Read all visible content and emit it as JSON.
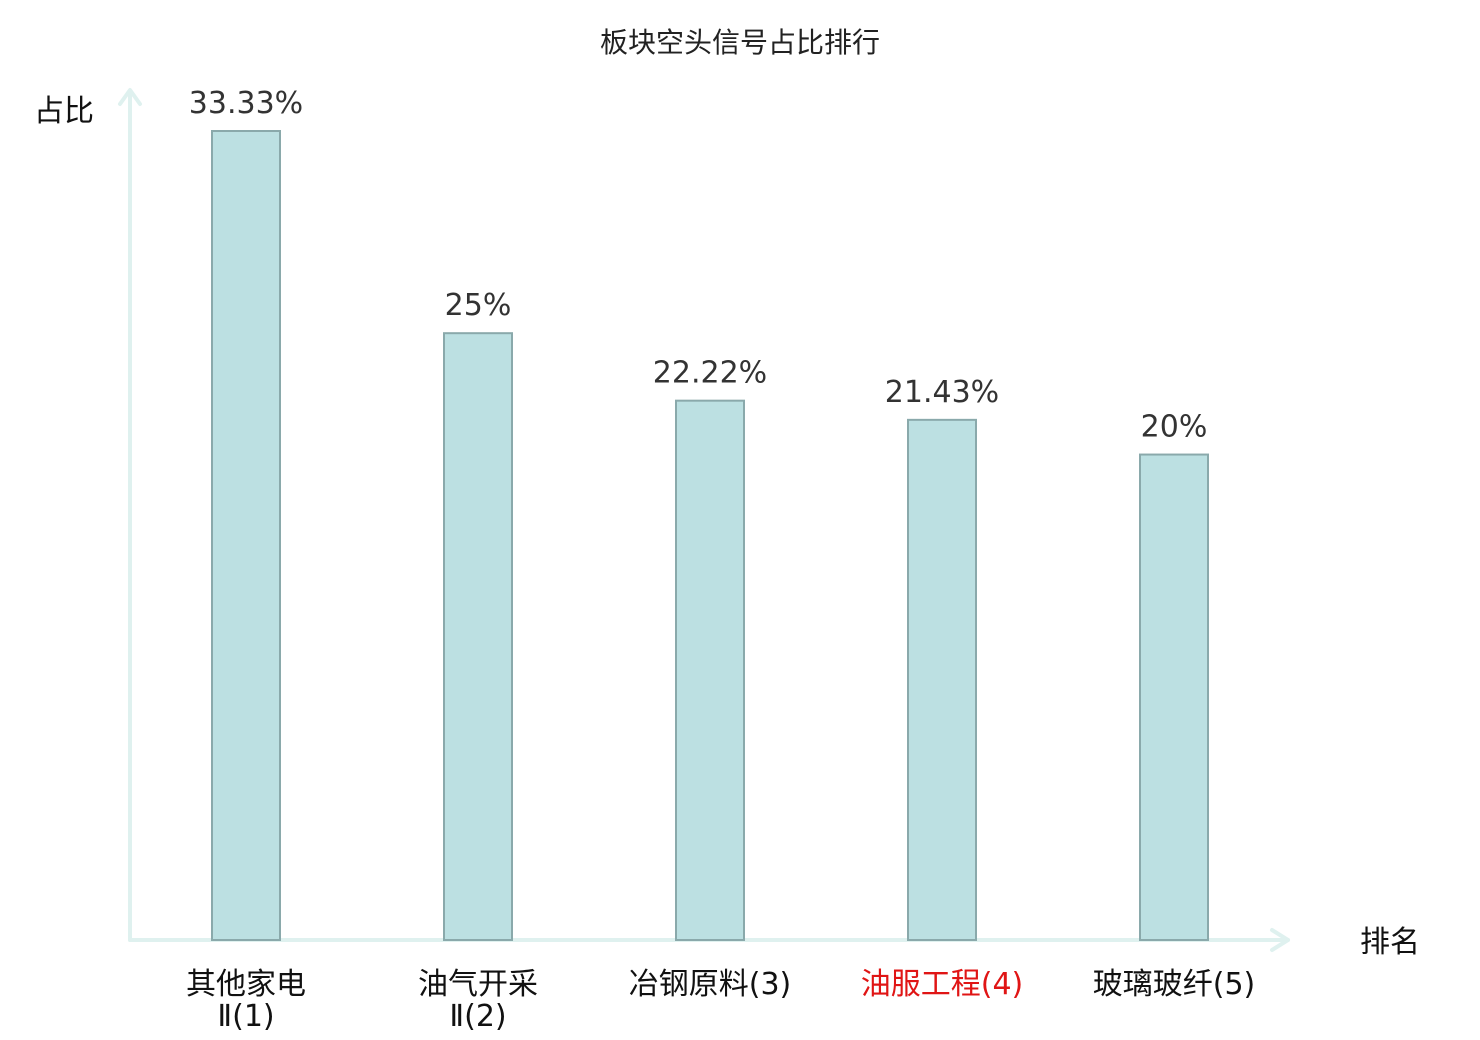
{
  "chart_data": {
    "type": "bar",
    "title": "板块空头信号占比排行",
    "xlabel": "排名",
    "ylabel": "占比",
    "categories": [
      {
        "label": "其他家电",
        "sublabel": "Ⅱ(1)",
        "highlight": false
      },
      {
        "label": "油气开采",
        "sublabel": "Ⅱ(2)",
        "highlight": false
      },
      {
        "label": "冶钢原料(3)",
        "sublabel": "",
        "highlight": false
      },
      {
        "label": "油服工程(4)",
        "sublabel": "",
        "highlight": true
      },
      {
        "label": "玻璃玻纤(5)",
        "sublabel": "",
        "highlight": false
      }
    ],
    "values": [
      33.33,
      25,
      22.22,
      21.43,
      20
    ],
    "value_labels": [
      "33.33%",
      "25%",
      "22.22%",
      "21.43%",
      "20%"
    ],
    "ylim": [
      0,
      33.33
    ],
    "grid": false,
    "legend": "none",
    "colors": {
      "bar_fill": "#bce0e2",
      "bar_stroke": "#8aa9ab",
      "axis": "#dff1ef",
      "highlight_text": "#e01515"
    }
  }
}
